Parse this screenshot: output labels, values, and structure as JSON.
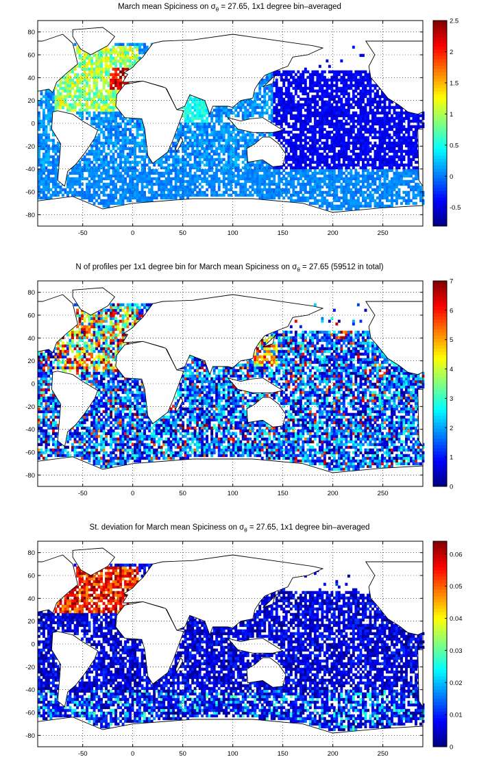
{
  "panels": [
    {
      "title": {
        "pre": "March mean Spiciness on ",
        "sym": "σ",
        "sub": "θ",
        "post": " = 27.65, 1x1 degree bin–averaged"
      },
      "chart_data": {
        "type": "heatmap",
        "x_ticks": [
          "-50",
          "0",
          "50",
          "100",
          "150",
          "200",
          "250"
        ],
        "y_ticks": [
          "80",
          "60",
          "40",
          "20",
          "0",
          "-20",
          "-40",
          "-60",
          "-80"
        ],
        "xlim": [
          -95,
          290
        ],
        "ylim": [
          -90,
          90
        ],
        "grid": true,
        "colorbar": {
          "ticks": [
            "2.5",
            "2",
            "1.5",
            "1",
            "0.5",
            "0",
            "-0.5"
          ],
          "range": [
            -0.8,
            2.5
          ],
          "colormap": "jet"
        }
      }
    },
    {
      "title": {
        "pre": "N of profiles per 1x1 degree bin for March mean Spiciness on ",
        "sym": "σ",
        "sub": "θ",
        "post": " = 27.65 (59512 in total)"
      },
      "chart_data": {
        "type": "heatmap",
        "x_ticks": [
          "-50",
          "0",
          "50",
          "100",
          "150",
          "200",
          "250"
        ],
        "y_ticks": [
          "80",
          "60",
          "40",
          "20",
          "0",
          "-20",
          "-40",
          "-60",
          "-80"
        ],
        "xlim": [
          -95,
          290
        ],
        "ylim": [
          -90,
          90
        ],
        "grid": true,
        "colorbar": {
          "ticks": [
            "7",
            "6",
            "5",
            "4",
            "3",
            "2",
            "1",
            "0"
          ],
          "range": [
            0,
            7
          ],
          "colormap": "jet"
        }
      }
    },
    {
      "title": {
        "pre": "St. deviation for March mean Spiciness on ",
        "sym": "σ",
        "sub": "θ",
        "post": " = 27.65, 1x1 degree bin–averaged"
      },
      "chart_data": {
        "type": "heatmap",
        "x_ticks": [
          "-50",
          "0",
          "50",
          "100",
          "150",
          "200",
          "250"
        ],
        "y_ticks": [
          "80",
          "60",
          "40",
          "20",
          "0",
          "-20",
          "-40",
          "-60",
          "-80"
        ],
        "xlim": [
          -95,
          290
        ],
        "ylim": [
          -90,
          90
        ],
        "grid": true,
        "colorbar": {
          "ticks": [
            "0.06",
            "0.05",
            "0.04",
            "0.03",
            "0.02",
            "0.01",
            "0"
          ],
          "range": [
            0,
            0.064
          ],
          "colormap": "jet"
        }
      }
    }
  ]
}
